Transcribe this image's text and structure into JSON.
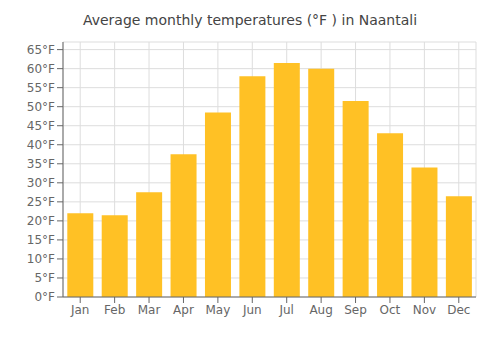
{
  "chart_data": {
    "type": "bar",
    "title": "Average monthly temperatures (°F ) in Naantali",
    "categories": [
      "Jan",
      "Feb",
      "Mar",
      "Apr",
      "May",
      "Jun",
      "Jul",
      "Aug",
      "Sep",
      "Oct",
      "Nov",
      "Dec"
    ],
    "values": [
      22,
      21.5,
      27.5,
      37.5,
      48.5,
      58,
      61.5,
      60,
      51.5,
      43,
      34,
      26.5
    ],
    "color": "#FFC125",
    "ylim": [
      0,
      67
    ],
    "yticks": [
      {
        "value": 0,
        "label": "0°F"
      },
      {
        "value": 5,
        "label": "5°F"
      },
      {
        "value": 10,
        "label": "10°F"
      },
      {
        "value": 15,
        "label": "15°F"
      },
      {
        "value": 20,
        "label": "20°F"
      },
      {
        "value": 25,
        "label": "25°F"
      },
      {
        "value": 30,
        "label": "30°F"
      },
      {
        "value": 35,
        "label": "35°F"
      },
      {
        "value": 40,
        "label": "40°F"
      },
      {
        "value": 45,
        "label": "45°F"
      },
      {
        "value": 50,
        "label": "50°F"
      },
      {
        "value": 55,
        "label": "55°F"
      },
      {
        "value": 60,
        "label": "60°F"
      },
      {
        "value": 65,
        "label": "65°F"
      }
    ],
    "grid": true
  }
}
